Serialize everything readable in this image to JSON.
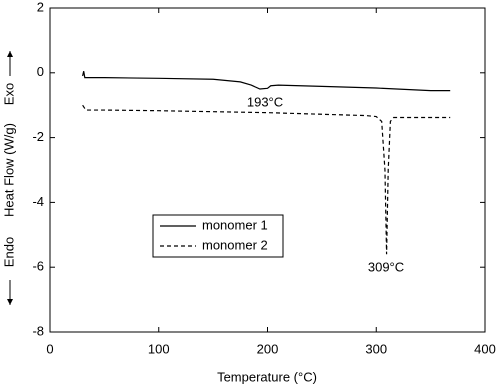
{
  "chart_data": {
    "type": "line",
    "x_label": "Temperature (°C)",
    "y_label": "Heat Flow (W/g)",
    "annotations": [
      "Endo",
      "Exo",
      "193°C",
      "309°C"
    ],
    "xlim": [
      0,
      400
    ],
    "xticks": [
      0,
      100,
      200,
      300,
      400
    ],
    "ylim": [
      -8,
      2
    ],
    "yticks": [
      -8,
      -6,
      -4,
      -2,
      0,
      2
    ],
    "legend": "lower left",
    "series": [
      {
        "name": "monomer 1",
        "color": "#000000",
        "dash": false,
        "x": [
          30,
          31,
          32,
          50,
          100,
          150,
          175,
          185,
          193,
          200,
          203,
          210,
          250,
          300,
          350,
          368
        ],
        "values": [
          -0.1,
          0.05,
          -0.15,
          -0.15,
          -0.17,
          -0.2,
          -0.28,
          -0.38,
          -0.5,
          -0.48,
          -0.4,
          -0.38,
          -0.42,
          -0.47,
          -0.55,
          -0.55
        ]
      },
      {
        "name": "monomer 2",
        "color": "#000000",
        "dash": true,
        "x": [
          30,
          33,
          50,
          100,
          150,
          200,
          250,
          290,
          300,
          305,
          308,
          309.5,
          311,
          313,
          316,
          368
        ],
        "values": [
          -1.0,
          -1.15,
          -1.15,
          -1.17,
          -1.2,
          -1.23,
          -1.28,
          -1.32,
          -1.35,
          -1.5,
          -3,
          -5.6,
          -3,
          -1.5,
          -1.38,
          -1.38
        ]
      }
    ]
  }
}
